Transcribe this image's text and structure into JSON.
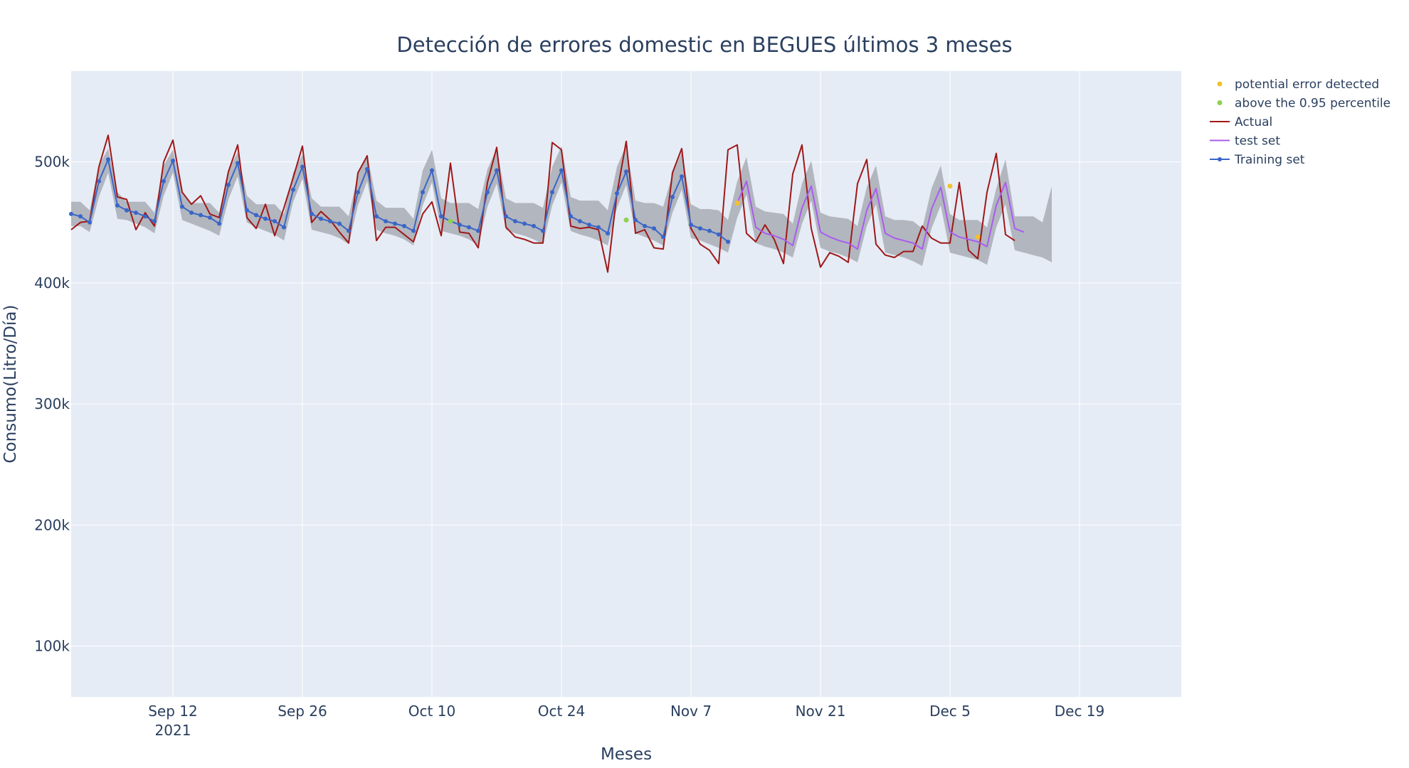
{
  "chart_data": {
    "type": "line",
    "title": "Detección de errores domestic en BEGUES últimos 3 meses",
    "xlabel": "Meses",
    "ylabel": "Consumo(Litro/Día)",
    "xlim": [
      "2021-09-01",
      "2021-12-30"
    ],
    "ylim": [
      58000,
      575000
    ],
    "x_ticks": [
      {
        "date": "2021-09-12",
        "label": "Sep 12",
        "sublabel": "2021"
      },
      {
        "date": "2021-09-26",
        "label": "Sep 26"
      },
      {
        "date": "2021-10-10",
        "label": "Oct 10"
      },
      {
        "date": "2021-10-24",
        "label": "Oct 24"
      },
      {
        "date": "2021-11-07",
        "label": "Nov 7"
      },
      {
        "date": "2021-11-21",
        "label": "Nov 21"
      },
      {
        "date": "2021-12-05",
        "label": "Dec 5"
      },
      {
        "date": "2021-12-19",
        "label": "Dec 19"
      }
    ],
    "y_ticks": [
      {
        "value": 100000,
        "label": "100k"
      },
      {
        "value": 200000,
        "label": "200k"
      },
      {
        "value": 300000,
        "label": "300k"
      },
      {
        "value": 400000,
        "label": "400k"
      },
      {
        "value": 500000,
        "label": "500k"
      }
    ],
    "grid": true,
    "legend_position": "top-right",
    "colors": {
      "plot_background": "#e5ecf6",
      "grid": "#ffffff",
      "band": "#a9adb4",
      "actual": "#a01818",
      "test": "#a95cf0",
      "training": "#3a66c8",
      "potential_error": "#f2c12e",
      "above_percentile": "#8fd14f"
    },
    "legend": [
      {
        "key": "potential_error",
        "label": "potential error detected",
        "kind": "marker"
      },
      {
        "key": "above_percentile",
        "label": "above the 0.95 percentile",
        "kind": "marker"
      },
      {
        "key": "actual",
        "label": "Actual",
        "kind": "line"
      },
      {
        "key": "test",
        "label": "test set",
        "kind": "line"
      },
      {
        "key": "training",
        "label": "Training set",
        "kind": "line-marker"
      }
    ],
    "training_set": {
      "start": "2021-09-01",
      "values": [
        457000,
        455000,
        450000,
        484000,
        502000,
        464000,
        460000,
        458000,
        455000,
        451000,
        484000,
        501000,
        463000,
        458000,
        456000,
        454000,
        449000,
        481000,
        499000,
        460000,
        456000,
        453000,
        451000,
        446000,
        477000,
        496000,
        457000,
        453000,
        451000,
        449000,
        443000,
        475000,
        494000,
        455000,
        451000,
        449000,
        447000,
        443000,
        475000,
        493000,
        455000,
        451000,
        448000,
        446000,
        443000,
        475000,
        493000,
        455000,
        451000,
        449000,
        447000,
        443000,
        475000,
        493000,
        455000,
        451000,
        448000,
        446000,
        441000,
        474000,
        492000,
        452000,
        447000,
        445000,
        438000,
        471000,
        488000,
        448000,
        445000,
        443000,
        440000,
        434000
      ]
    },
    "test_set": {
      "start": "2021-11-12",
      "values": [
        466000,
        484000,
        446000,
        441000,
        439000,
        436000,
        431000,
        462000,
        480000,
        442000,
        438000,
        435000,
        433000,
        428000,
        460000,
        478000,
        441000,
        437000,
        435000,
        433000,
        428000,
        461000,
        479000,
        442000,
        438000,
        436000,
        434000,
        430000,
        464000,
        483000,
        445000,
        442000
      ]
    },
    "actual": {
      "start": "2021-09-01",
      "values": [
        444000,
        450000,
        451000,
        496000,
        522000,
        471000,
        469000,
        444000,
        458000,
        447000,
        500000,
        518000,
        475000,
        465000,
        472000,
        457000,
        454000,
        492000,
        514000,
        454000,
        445000,
        465000,
        439000,
        462000,
        487000,
        513000,
        450000,
        459000,
        452000,
        442000,
        433000,
        491000,
        505000,
        435000,
        446000,
        446000,
        440000,
        434000,
        457000,
        467000,
        439000,
        499000,
        442000,
        441000,
        429000,
        483000,
        512000,
        446000,
        438000,
        436000,
        433000,
        433000,
        516000,
        510000,
        447000,
        445000,
        446000,
        444000,
        409000,
        474000,
        517000,
        441000,
        444000,
        429000,
        428000,
        491000,
        511000,
        445000,
        432000,
        427000,
        416000,
        510000,
        514000,
        441000,
        434000,
        448000,
        436000,
        416000,
        490000,
        514000,
        445000,
        413000,
        425000,
        422000,
        417000,
        482000,
        502000,
        432000,
        423000,
        421000,
        426000,
        426000,
        447000,
        437000,
        433000,
        433000,
        483000,
        427000,
        420000,
        475000,
        507000,
        440000,
        435000
      ]
    },
    "band": {
      "start": "2021-09-01",
      "upper": [
        467000,
        467000,
        460000,
        497000,
        511000,
        475000,
        467000,
        467000,
        467000,
        458000,
        497000,
        510000,
        474000,
        466000,
        466000,
        466000,
        458000,
        493000,
        508000,
        472000,
        465000,
        465000,
        465000,
        457000,
        491000,
        506000,
        470000,
        463000,
        463000,
        463000,
        455000,
        490000,
        506000,
        468000,
        462000,
        462000,
        462000,
        453000,
        493000,
        510000,
        470000,
        466000,
        466000,
        466000,
        461000,
        494000,
        511000,
        470000,
        466000,
        466000,
        466000,
        462000,
        496000,
        513000,
        471000,
        468000,
        468000,
        468000,
        460000,
        496000,
        514000,
        468000,
        466000,
        466000,
        463000,
        490000,
        508000,
        465000,
        461000,
        461000,
        460000,
        452000,
        484000,
        504000,
        463000,
        459000,
        458000,
        457000,
        449000,
        482000,
        501000,
        458000,
        455000,
        454000,
        453000,
        447000,
        479000,
        497000,
        455000,
        452000,
        452000,
        451000,
        445000,
        478000,
        497000,
        457000,
        452000,
        452000,
        452000,
        446000,
        478000,
        502000,
        455000,
        455000,
        455000,
        450000,
        480000
      ],
      "lower": [
        447000,
        447000,
        442000,
        471000,
        491000,
        453000,
        452000,
        449000,
        446000,
        441000,
        472000,
        491000,
        452000,
        449000,
        446000,
        443000,
        439000,
        469000,
        488000,
        450000,
        446000,
        443000,
        440000,
        435000,
        467000,
        486000,
        444000,
        442000,
        440000,
        437000,
        432000,
        464000,
        484000,
        444000,
        441000,
        439000,
        436000,
        431000,
        464000,
        483000,
        443000,
        441000,
        439000,
        436000,
        431000,
        463000,
        482000,
        444000,
        441000,
        439000,
        436000,
        432000,
        464000,
        483000,
        443000,
        440000,
        438000,
        435000,
        431000,
        462000,
        481000,
        441000,
        438000,
        435000,
        431000,
        458000,
        477000,
        437000,
        435000,
        432000,
        429000,
        425000,
        454000,
        473000,
        433000,
        430000,
        428000,
        425000,
        421000,
        449000,
        468000,
        429000,
        426000,
        424000,
        421000,
        417000,
        447000,
        465000,
        425000,
        423000,
        421000,
        418000,
        414000,
        445000,
        464000,
        425000,
        423000,
        421000,
        419000,
        415000,
        446000,
        465000,
        427000,
        425000,
        423000,
        421000,
        417000
      ]
    },
    "potential_error_points": [
      {
        "x": "2021-11-12",
        "y": 466000
      },
      {
        "x": "2021-12-05",
        "y": 480000
      },
      {
        "x": "2021-12-08",
        "y": 438000
      }
    ],
    "above_percentile_points": [
      {
        "x": "2021-10-12",
        "y": 451000
      },
      {
        "x": "2021-10-31",
        "y": 452000
      }
    ]
  }
}
